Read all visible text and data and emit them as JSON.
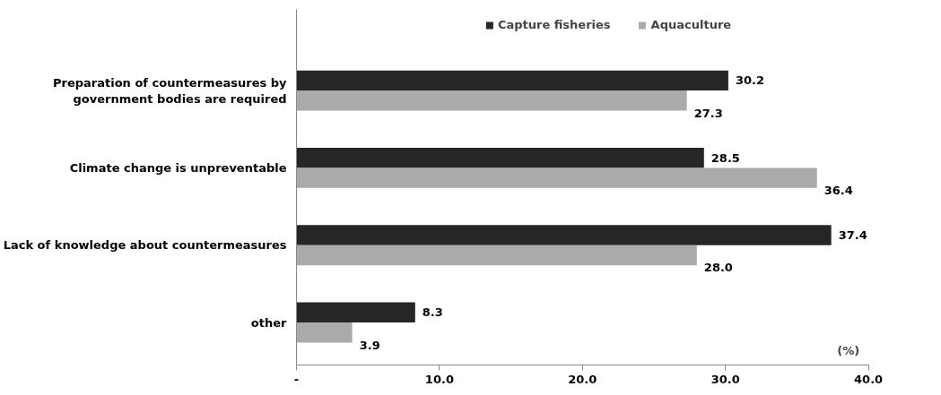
{
  "chart_data": {
    "type": "bar",
    "orientation": "horizontal",
    "categories": [
      "Preparation of countermeasures by government bodies are required",
      "Climate change is unpreventable",
      "Lack of knowledge about countermeasures",
      "other"
    ],
    "series": [
      {
        "name": "Capture fisheries",
        "color": "#262626",
        "values": [
          30.2,
          28.5,
          37.4,
          8.3
        ],
        "value_labels": [
          "30.2",
          "28.5",
          "37.4",
          "8.3"
        ]
      },
      {
        "name": "Aquaculture",
        "color": "#aaaaaa",
        "values": [
          27.3,
          36.4,
          28.0,
          3.9
        ],
        "value_labels": [
          "27.3",
          "36.4",
          "28.0",
          "3.9"
        ]
      }
    ],
    "xlim": [
      0,
      40
    ],
    "xticks": [
      {
        "value": 0,
        "label": "-"
      },
      {
        "value": 10,
        "label": "10.0"
      },
      {
        "value": 20,
        "label": "20.0"
      },
      {
        "value": 30,
        "label": "30.0"
      },
      {
        "value": 40,
        "label": "40.0"
      }
    ],
    "grid": false,
    "legend": "top",
    "annotations": [
      "(%)"
    ]
  }
}
